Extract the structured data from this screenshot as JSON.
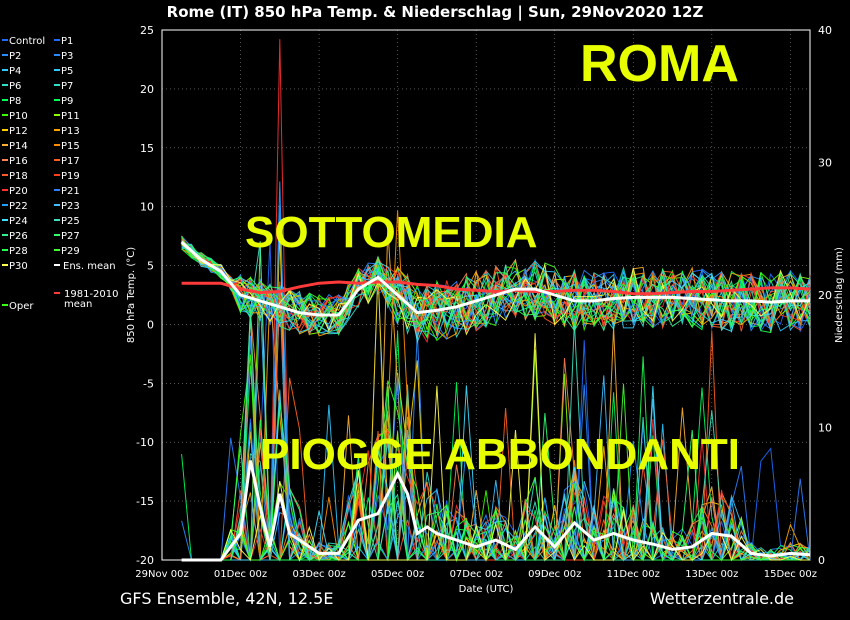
{
  "chart_data": {
    "type": "line",
    "title": "Rome  (IT)  850 hPa Temp. & Niederschlag | Sun, 29Nov2020 12Z",
    "xlabel": "Date (UTC)",
    "ylabel": "850 hPa Temp. (°C)",
    "y2label": "Niederschlag (mm)",
    "ylim": [
      -20,
      25
    ],
    "y2lim": [
      0,
      40
    ],
    "yticks": [
      "25",
      "20",
      "15",
      "10",
      "5",
      "0",
      "-5",
      "-10",
      "-15",
      "-20"
    ],
    "y2ticks": [
      "40",
      "30",
      "20",
      "10",
      "0"
    ],
    "xticks": [
      "29Nov 00z",
      "01Dec 00z",
      "03Dec 00z",
      "05Dec 00z",
      "07Dec 00z",
      "09Dec 00z",
      "11Dec 00z",
      "13Dec 00z",
      "15Dec 00z"
    ],
    "xlim_days": [
      0,
      16.5
    ],
    "legend": [
      "Control",
      "P1",
      "P2",
      "P3",
      "P4",
      "P5",
      "P6",
      "P7",
      "P8",
      "P9",
      "P10",
      "P11",
      "P12",
      "P13",
      "P14",
      "P15",
      "P16",
      "P17",
      "P18",
      "P19",
      "P20",
      "P21",
      "P22",
      "P23",
      "P24",
      "P25",
      "P26",
      "P27",
      "P28",
      "P29",
      "P30",
      "Ens. mean",
      "Oper",
      "1981-2010 mean"
    ],
    "legend_position": "left",
    "ens_mean_temp": {
      "x": [
        0.5,
        1,
        1.5,
        2,
        2.5,
        3,
        3.5,
        4,
        4.5,
        5,
        5.5,
        6,
        6.5,
        7,
        7.5,
        8,
        8.5,
        9,
        9.5,
        10,
        10.5,
        11,
        11.5,
        12,
        12.5,
        13,
        13.5,
        14,
        14.5,
        15,
        15.5,
        16,
        16.5
      ],
      "y": [
        7,
        5.5,
        4.5,
        2.5,
        2,
        1.5,
        1,
        0.8,
        0.8,
        3,
        4,
        2.5,
        1,
        1.2,
        1.5,
        2,
        2.5,
        3,
        3,
        2.5,
        2,
        2,
        2.2,
        2.3,
        2.3,
        2.3,
        2.2,
        2.1,
        2,
        2,
        1.9,
        2,
        2
      ]
    },
    "climate_mean_temp": {
      "x": [
        0.5,
        1,
        1.5,
        2,
        2.5,
        3,
        3.5,
        4,
        4.5,
        5,
        5.5,
        6,
        6.5,
        7,
        7.5,
        8,
        8.5,
        9,
        9.5,
        10,
        10.5,
        11,
        11.5,
        12,
        12.5,
        13,
        13.5,
        14,
        14.5,
        15,
        15.5,
        16,
        16.5
      ],
      "y": [
        3.5,
        3.5,
        3.5,
        3,
        2.7,
        2.8,
        3.2,
        3.5,
        3.6,
        3.5,
        3.6,
        3.6,
        3.4,
        3.3,
        3,
        2.9,
        2.8,
        2.9,
        2.8,
        2.8,
        2.9,
        2.9,
        2.8,
        2.6,
        2.6,
        2.7,
        2.8,
        2.8,
        2.9,
        3,
        3.1,
        3.1,
        3
      ]
    },
    "ens_mean_precip": {
      "x": [
        0.5,
        1,
        1.5,
        2,
        2.25,
        2.5,
        2.75,
        3,
        3.25,
        3.5,
        4,
        4.5,
        5,
        5.5,
        6,
        6.25,
        6.5,
        6.75,
        7,
        7.5,
        8,
        8.5,
        9,
        9.5,
        10,
        10.5,
        11,
        11.5,
        12,
        12.5,
        13,
        13.5,
        14,
        14.5,
        15,
        15.5,
        16,
        16.5
      ],
      "y": [
        0,
        0,
        0,
        2,
        7.5,
        4,
        1,
        5,
        2,
        1.5,
        0.5,
        0.5,
        3,
        3.5,
        6.5,
        5,
        2,
        2.5,
        2,
        1.5,
        1,
        1.5,
        0.8,
        2.5,
        1,
        2.8,
        1.5,
        2,
        1.5,
        1.2,
        0.8,
        1,
        2,
        1.8,
        0.5,
        0.3,
        0.5,
        0.4
      ]
    },
    "members_temp_range": [
      -1.5,
      8
    ],
    "members_precip_range": [
      0,
      40
    ]
  },
  "annotations": {
    "roma": "ROMA",
    "sottomedia": "SOTTOMEDIA",
    "piogge": "PIOGGE ABBONDANTI"
  },
  "footer": {
    "left": "GFS Ensemble, 42N, 12.5E",
    "right": "Wetterzentrale.de"
  },
  "colors": {
    "ens_mean": "#ffffff",
    "climate_mean": "#ff3a3a",
    "overlay_text": "#e8ff00",
    "legend": [
      "#1f6bff",
      "#1f6bff",
      "#2a8bff",
      "#2a8bff",
      "#2fc8ff",
      "#2fc8ff",
      "#2fe0c8",
      "#2fe0c8",
      "#00ff5a",
      "#00ff5a",
      "#39ff00",
      "#8cff00",
      "#ffd000",
      "#ffa500",
      "#ffb030",
      "#ff8c00",
      "#ff8050",
      "#ff6020",
      "#ff5a30",
      "#ff4020",
      "#ff3030",
      "#2f7fff",
      "#1f9fff",
      "#3fbfff",
      "#3fdfff",
      "#3fe0c0",
      "#30f090",
      "#30ff70",
      "#20ff50",
      "#40ff30",
      "#ffff50",
      "#ffffff",
      "#39ff14",
      "#ff3a3a"
    ]
  }
}
